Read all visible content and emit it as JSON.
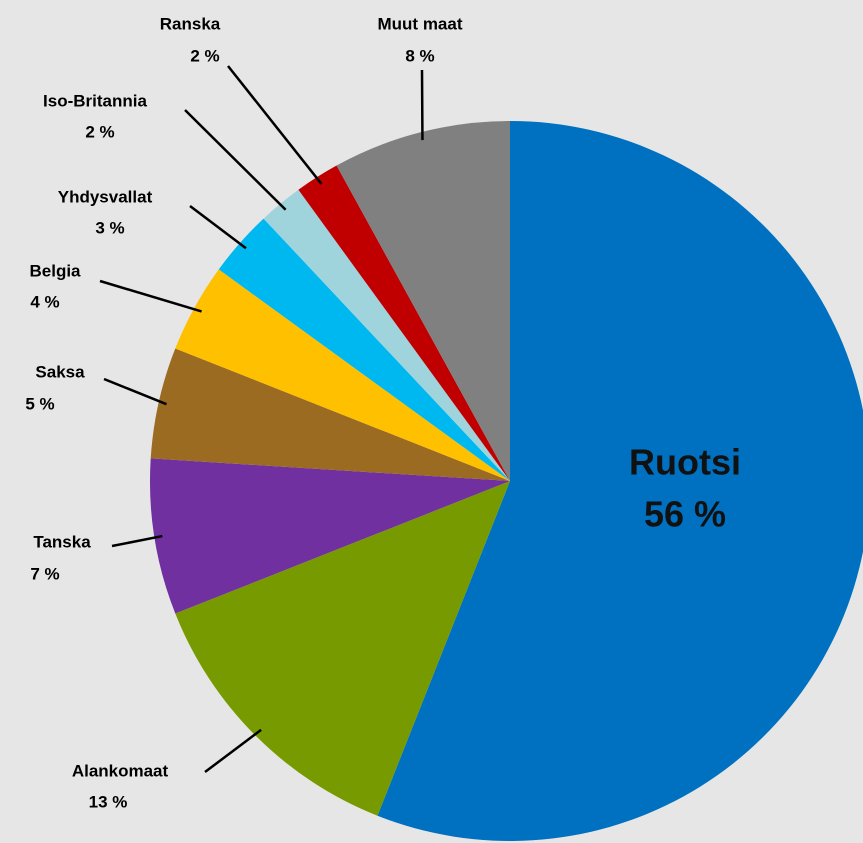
{
  "chart_data": {
    "type": "pie",
    "categories": [
      "Ruotsi",
      "Alankomaat",
      "Tanska",
      "Saksa",
      "Belgia",
      "Yhdysvallat",
      "Iso-Britannia",
      "Ranska",
      "Muut maat"
    ],
    "values": [
      56,
      13,
      7,
      5,
      4,
      3,
      2,
      2,
      8
    ],
    "value_labels": [
      "56 %",
      "13 %",
      "7 %",
      "5 %",
      "4 %",
      "3 %",
      "2 %",
      "2 %",
      "8 %"
    ],
    "colors": [
      "#0070c0",
      "#779a00",
      "#7030a0",
      "#9c6b22",
      "#ffc000",
      "#00b8f0",
      "#a0d4dc",
      "#c00000",
      "#808080"
    ]
  }
}
